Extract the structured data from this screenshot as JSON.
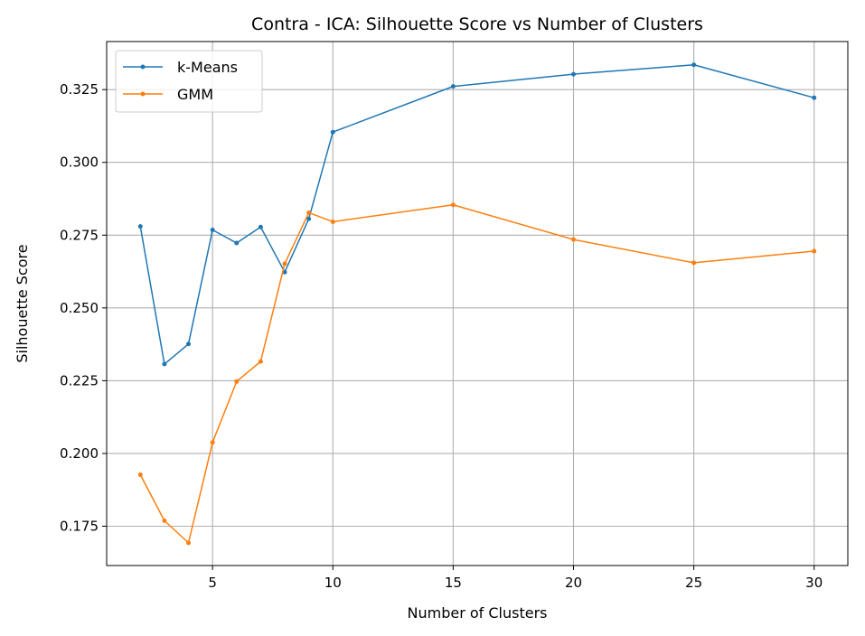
{
  "chart_data": {
    "type": "line",
    "title": "Contra - ICA: Silhouette Score vs Number of Clusters",
    "xlabel": "Number of Clusters",
    "ylabel": "Silhouette Score",
    "xlim": [
      0.6,
      31.4
    ],
    "ylim": [
      0.1615,
      0.3415
    ],
    "xticks": [
      5,
      10,
      15,
      20,
      25,
      30
    ],
    "yticks": [
      0.175,
      0.2,
      0.225,
      0.25,
      0.275,
      0.3,
      0.325
    ],
    "xtick_labels": [
      "5",
      "10",
      "15",
      "20",
      "25",
      "30"
    ],
    "ytick_labels": [
      "0.175",
      "0.200",
      "0.225",
      "0.250",
      "0.275",
      "0.300",
      "0.325"
    ],
    "grid": true,
    "legend_position": "upper-left",
    "x": [
      2,
      3,
      4,
      5,
      6,
      7,
      8,
      9,
      10,
      15,
      20,
      25,
      30
    ],
    "series": [
      {
        "name": "k-Means",
        "color": "#1f77b4",
        "values": [
          0.278,
          0.2307,
          0.2376,
          0.2768,
          0.2723,
          0.2778,
          0.2623,
          0.2806,
          0.3104,
          0.3261,
          0.3303,
          0.3335,
          0.3222
        ]
      },
      {
        "name": "GMM",
        "color": "#ff7f0e",
        "values": [
          0.1927,
          0.1769,
          0.1693,
          0.2038,
          0.2247,
          0.2316,
          0.2652,
          0.2827,
          0.2796,
          0.2854,
          0.2735,
          0.2655,
          0.2695
        ]
      }
    ]
  }
}
